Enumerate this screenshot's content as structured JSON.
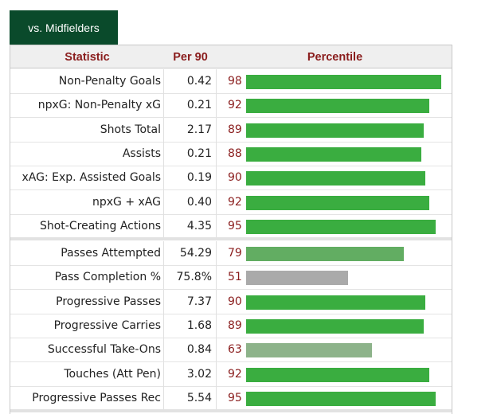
{
  "tab": {
    "label": "vs. Midfielders"
  },
  "headers": {
    "statistic": "Statistic",
    "per90": "Per 90",
    "percentile": "Percentile"
  },
  "group1": [
    {
      "stat": "Non-Penalty Goals",
      "per90": "0.42",
      "percentile": 98,
      "bar_color": "#3aad40"
    },
    {
      "stat": "npxG: Non-Penalty xG",
      "per90": "0.21",
      "percentile": 92,
      "bar_color": "#3aad40"
    },
    {
      "stat": "Shots Total",
      "per90": "2.17",
      "percentile": 89,
      "bar_color": "#3aad40"
    },
    {
      "stat": "Assists",
      "per90": "0.21",
      "percentile": 88,
      "bar_color": "#3aad40"
    },
    {
      "stat": "xAG: Exp. Assisted Goals",
      "per90": "0.19",
      "percentile": 90,
      "bar_color": "#3aad40"
    },
    {
      "stat": "npxG + xAG",
      "per90": "0.40",
      "percentile": 92,
      "bar_color": "#3aad40"
    },
    {
      "stat": "Shot-Creating Actions",
      "per90": "4.35",
      "percentile": 95,
      "bar_color": "#3aad40"
    }
  ],
  "group2": [
    {
      "stat": "Passes Attempted",
      "per90": "54.29",
      "percentile": 79,
      "bar_color": "#62ad62"
    },
    {
      "stat": "Pass Completion %",
      "per90": "75.8%",
      "percentile": 51,
      "bar_color": "#aaaaaa"
    },
    {
      "stat": "Progressive Passes",
      "per90": "7.37",
      "percentile": 90,
      "bar_color": "#3aad40"
    },
    {
      "stat": "Progressive Carries",
      "per90": "1.68",
      "percentile": 89,
      "bar_color": "#3aad40"
    },
    {
      "stat": "Successful Take-Ons",
      "per90": "0.84",
      "percentile": 63,
      "bar_color": "#8db38a"
    },
    {
      "stat": "Touches (Att Pen)",
      "per90": "3.02",
      "percentile": 92,
      "bar_color": "#3aad40"
    },
    {
      "stat": "Progressive Passes Rec",
      "per90": "5.54",
      "percentile": 95,
      "bar_color": "#3aad40"
    }
  ]
}
